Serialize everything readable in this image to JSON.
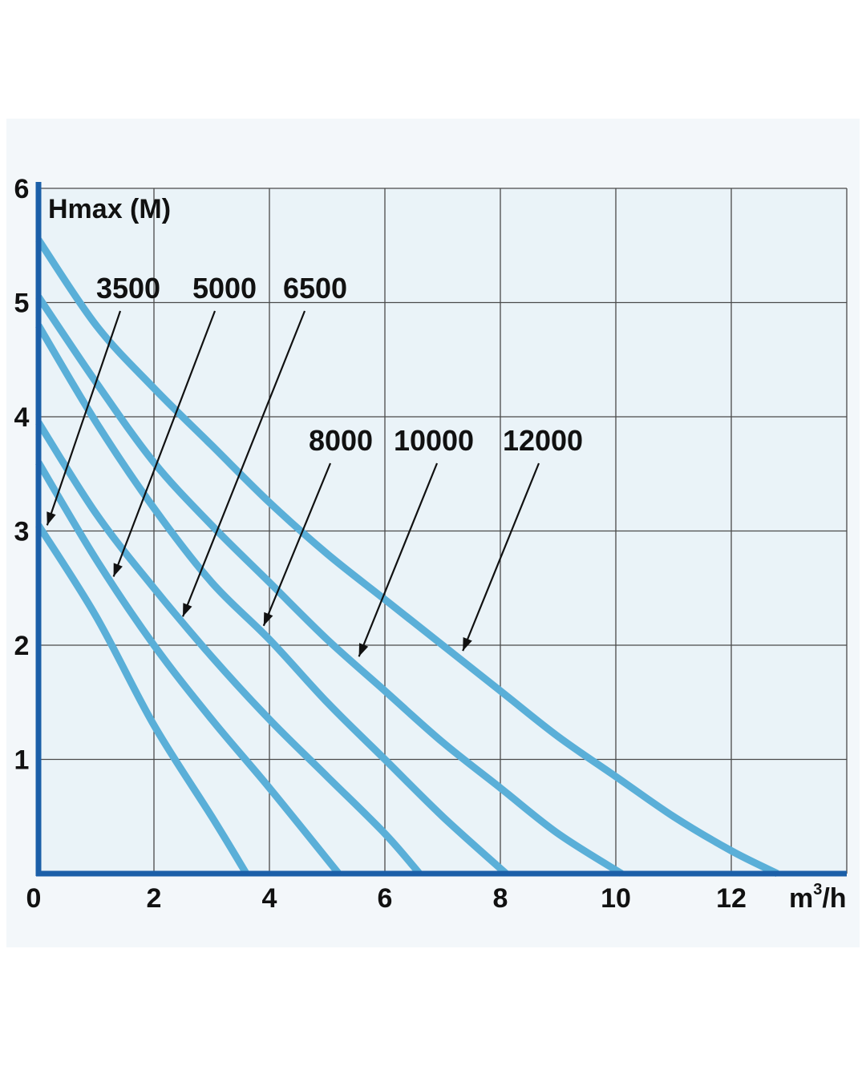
{
  "chart_data": {
    "type": "line",
    "ylabel": "Hmax (M)",
    "xlabel_main": "m",
    "xlabel_sup": "3",
    "xlabel_tail": "/h",
    "xlim": [
      0,
      14
    ],
    "ylim": [
      0,
      6
    ],
    "x_ticks": [
      0,
      2,
      4,
      6,
      8,
      10,
      12
    ],
    "y_ticks": [
      1,
      2,
      3,
      4,
      5,
      6
    ],
    "grid": true,
    "series": [
      {
        "name": "3500",
        "points": [
          [
            0,
            3.05
          ],
          [
            1,
            2.25
          ],
          [
            2,
            1.3
          ],
          [
            3,
            0.5
          ],
          [
            3.6,
            0
          ]
        ]
      },
      {
        "name": "5000",
        "points": [
          [
            0,
            3.6
          ],
          [
            1,
            2.75
          ],
          [
            2,
            2.0
          ],
          [
            3,
            1.35
          ],
          [
            4,
            0.75
          ],
          [
            5.2,
            0
          ]
        ]
      },
      {
        "name": "6500",
        "points": [
          [
            0,
            3.95
          ],
          [
            1,
            3.15
          ],
          [
            2,
            2.5
          ],
          [
            3,
            1.9
          ],
          [
            4,
            1.35
          ],
          [
            5,
            0.85
          ],
          [
            6,
            0.35
          ],
          [
            6.6,
            0
          ]
        ]
      },
      {
        "name": "8000",
        "points": [
          [
            0,
            4.8
          ],
          [
            1,
            3.95
          ],
          [
            2,
            3.2
          ],
          [
            3,
            2.55
          ],
          [
            4,
            2.05
          ],
          [
            5,
            1.5
          ],
          [
            6,
            1.0
          ],
          [
            7,
            0.5
          ],
          [
            8.1,
            0
          ]
        ]
      },
      {
        "name": "10000",
        "points": [
          [
            0,
            5.05
          ],
          [
            1,
            4.3
          ],
          [
            2,
            3.6
          ],
          [
            3,
            3.05
          ],
          [
            4,
            2.55
          ],
          [
            5,
            2.05
          ],
          [
            6,
            1.6
          ],
          [
            7,
            1.15
          ],
          [
            8,
            0.75
          ],
          [
            9,
            0.35
          ],
          [
            10.1,
            0
          ]
        ]
      },
      {
        "name": "12000",
        "points": [
          [
            0,
            5.55
          ],
          [
            1,
            4.8
          ],
          [
            2,
            4.25
          ],
          [
            3,
            3.75
          ],
          [
            4,
            3.25
          ],
          [
            5,
            2.8
          ],
          [
            6,
            2.4
          ],
          [
            7,
            2.0
          ],
          [
            8,
            1.6
          ],
          [
            9,
            1.2
          ],
          [
            10,
            0.85
          ],
          [
            11,
            0.5
          ],
          [
            12,
            0.2
          ],
          [
            12.8,
            0
          ]
        ]
      }
    ],
    "line_color": "#5aafd8",
    "background_color": "#eaf3f8",
    "axis_color": "#1b5fa8"
  }
}
